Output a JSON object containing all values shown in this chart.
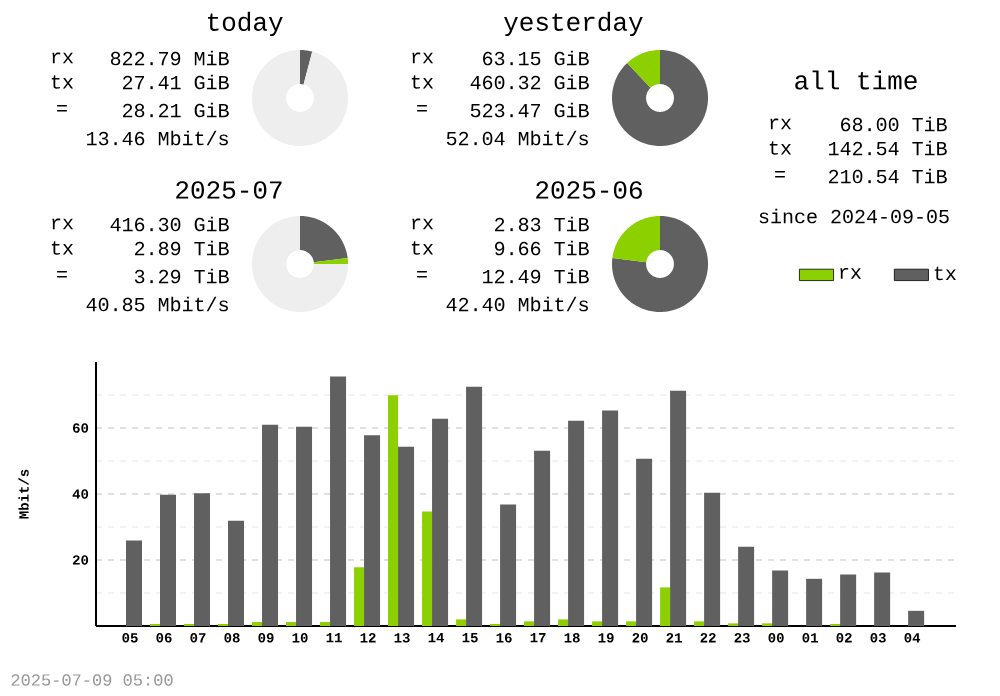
{
  "chart_data": [
    {
      "type": "donut",
      "title": "today",
      "categories": [
        null,
        null,
        null
      ],
      "values": [
        4.1,
        null,
        95.8
      ],
      "colors": [
        "#606060",
        "#8cd000",
        "#eeeeee"
      ],
      "annotations": [
        "rx",
        "822.79 MiB",
        "tx",
        "27.41 GiB",
        "=",
        "28.21 GiB",
        "13.46 Mbit/s"
      ]
    },
    {
      "type": "donut",
      "title": "yesterday",
      "categories": [
        null,
        null
      ],
      "values": [
        88,
        12
      ],
      "colors": [
        "#606060",
        "#8cd000"
      ],
      "annotations": [
        "rx",
        "63.15 GiB",
        "tx",
        "460.32 GiB",
        "=",
        "523.47 GiB",
        "52.04 Mbit/s"
      ]
    },
    {
      "type": "other",
      "title": "all time",
      "annotations": [
        "rx",
        "68.00 TiB",
        "tx",
        "142.54 TiB",
        "=",
        "210.54 TiB",
        "since 2024-09-05"
      ]
    },
    {
      "type": "donut",
      "title": "2025-07",
      "categories": [
        null,
        null,
        null
      ],
      "values": [
        23,
        2,
        75
      ],
      "colors": [
        "#606060",
        "#8cd000",
        "#eeeeee"
      ],
      "annotations": [
        "rx",
        "416.30 GiB",
        "tx",
        "2.89 TiB",
        "=",
        "3.29 TiB",
        "40.85 Mbit/s"
      ]
    },
    {
      "type": "donut",
      "title": "2025-06",
      "categories": [
        null,
        null
      ],
      "values": [
        77,
        23
      ],
      "colors": [
        "#606060",
        "#8cd000"
      ],
      "annotations": [
        "rx",
        "2.83 TiB",
        "tx",
        "9.66 TiB",
        "=",
        "12.49 TiB",
        "42.40 Mbit/s"
      ]
    },
    {
      "type": "bar",
      "ylabel": "Mbit/s",
      "categories": [
        "05",
        "06",
        "07",
        "08",
        "09",
        "10",
        "11",
        "12",
        "13",
        "14",
        "15",
        "16",
        "17",
        "18",
        "19",
        "20",
        "21",
        "22",
        "23",
        "00",
        "01",
        "02",
        "03",
        "04"
      ],
      "series": [
        {
          "name": "rx",
          "color": "#8cd000",
          "values": [
            0,
            0.6,
            0.6,
            0.6,
            1.2,
            1.2,
            1.2,
            17.8,
            69.9,
            34.7,
            2.0,
            0.6,
            1.4,
            2.0,
            1.4,
            1.4,
            11.7,
            1.4,
            0.8,
            0.8,
            0,
            0.6,
            0,
            0
          ]
        },
        {
          "name": "tx",
          "color": "#606060",
          "values": [
            25.9,
            39.8,
            40.2,
            31.9,
            61.0,
            60.4,
            75.6,
            57.8,
            54.3,
            62.8,
            72.5,
            36.8,
            53.1,
            62.2,
            65.3,
            50.7,
            71.3,
            40.4,
            24.0,
            16.8,
            14.3,
            15.6,
            16.2,
            4.6
          ]
        }
      ],
      "ylim": [
        0,
        80
      ],
      "yticks": [
        {
          "value": 10,
          "label": null
        },
        20,
        {
          "value": 30,
          "label": null
        },
        40,
        {
          "value": 50,
          "label": null
        },
        60,
        {
          "value": 70,
          "label": null
        }
      ],
      "grid": "y",
      "legend": "top right",
      "annotations": [
        "2025-07-09 05:00"
      ]
    }
  ]
}
